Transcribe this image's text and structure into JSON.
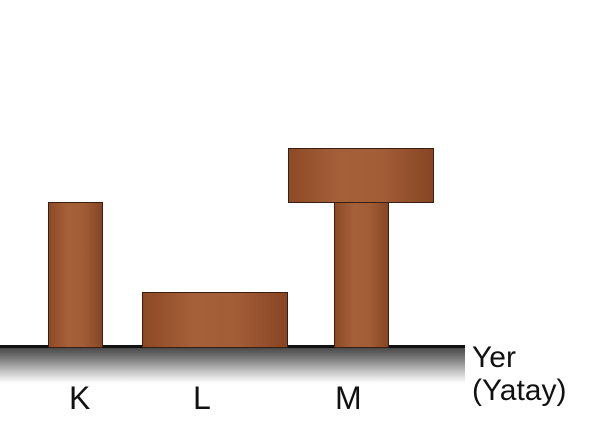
{
  "labels": {
    "k": "K",
    "l": "L",
    "m": "M"
  },
  "ground": {
    "line1": "Yer",
    "line2": "(Yatay)"
  },
  "colors": {
    "brick": "#a05a34",
    "brick_border": "#3a1f10",
    "ground": "#3c3c3c"
  }
}
